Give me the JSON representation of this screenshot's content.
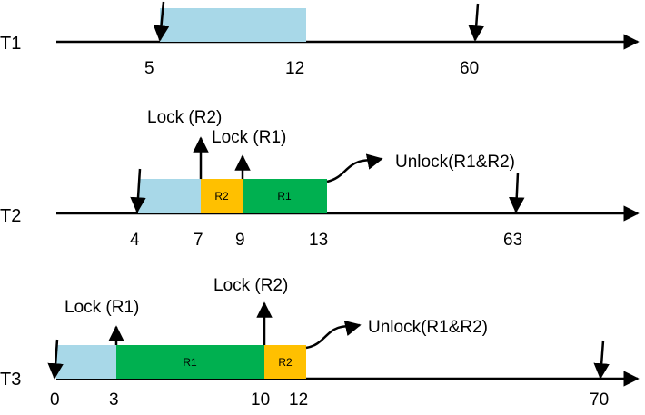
{
  "colors": {
    "compute": "#a8d8e8",
    "r1": "#00b050",
    "r2": "#ffc000",
    "line": "#000000"
  },
  "timelines": [
    {
      "id": "T1",
      "label": "T1",
      "ticks": [
        "5",
        "12",
        "60"
      ],
      "blocks": [
        {
          "kind": "compute",
          "label": ""
        }
      ],
      "arrivals": [
        "5",
        "60"
      ],
      "locks": [],
      "unlock": ""
    },
    {
      "id": "T2",
      "label": "T2",
      "ticks": [
        "4",
        "7",
        "9",
        "13",
        "63"
      ],
      "blocks": [
        {
          "kind": "compute",
          "label": ""
        },
        {
          "kind": "r2",
          "label": "R2"
        },
        {
          "kind": "r1",
          "label": "R1"
        }
      ],
      "arrivals": [
        "4",
        "63"
      ],
      "locks": [
        {
          "text": "Lock (R2)",
          "at": "7"
        },
        {
          "text": "Lock (R1)",
          "at": "9"
        }
      ],
      "unlock": "Unlock(R1&R2)"
    },
    {
      "id": "T3",
      "label": "T3",
      "ticks": [
        "0",
        "3",
        "10",
        "12",
        "70"
      ],
      "blocks": [
        {
          "kind": "compute",
          "label": ""
        },
        {
          "kind": "r1",
          "label": "R1"
        },
        {
          "kind": "r2",
          "label": "R2"
        }
      ],
      "arrivals": [
        "0",
        "70"
      ],
      "locks": [
        {
          "text": "Lock (R1)",
          "at": "3"
        },
        {
          "text": "Lock (R2)",
          "at": "10"
        }
      ],
      "unlock": "Unlock(R1&R2)"
    }
  ]
}
